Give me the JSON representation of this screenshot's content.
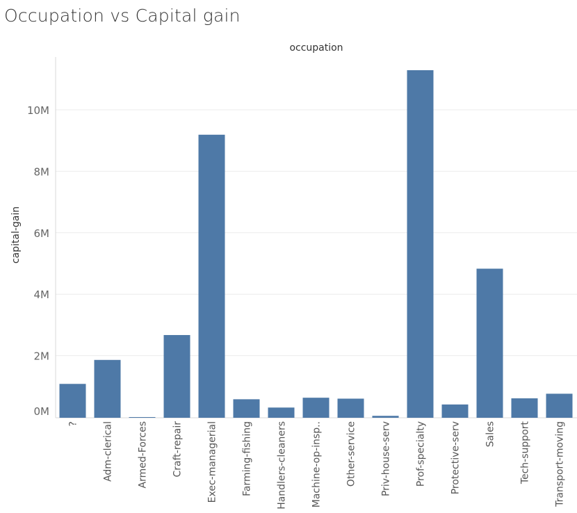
{
  "page_title": "Occupation vs Capital gain",
  "chart_data": {
    "type": "bar",
    "title": "Occupation vs Capital gain",
    "column_header": "occupation",
    "xlabel": "",
    "ylabel": "capital-gain",
    "categories": [
      "?",
      "Adm-clerical",
      "Armed-Forces",
      "Craft-repair",
      "Exec-managerial",
      "Farming-fishing",
      "Handlers-cleaners",
      "Machine-op-insp..",
      "Other-service",
      "Priv-house-serv",
      "Prof-specialty",
      "Protective-serv",
      "Sales",
      "Tech-support",
      "Transport-moving"
    ],
    "values": [
      1080000,
      1860000,
      0,
      2670000,
      9190000,
      580000,
      310000,
      630000,
      600000,
      40000,
      11290000,
      410000,
      4830000,
      610000,
      760000
    ],
    "yticks": [
      0,
      2000000,
      4000000,
      6000000,
      8000000,
      10000000
    ],
    "ytick_labels": [
      "0M",
      "2M",
      "4M",
      "6M",
      "8M",
      "10M"
    ],
    "ylim": [
      0,
      11800000
    ],
    "bar_color": "#4e79a7",
    "grid": true
  }
}
